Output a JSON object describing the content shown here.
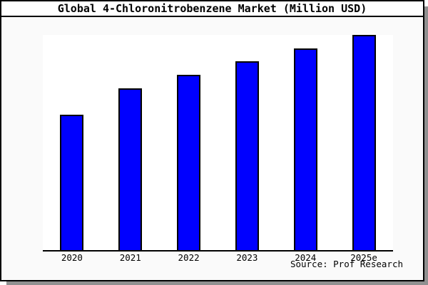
{
  "title": "Global 4-Chloronitrobenzene Market (Million USD)",
  "source_credit": "Source: Prof Research",
  "colors": {
    "bar_fill": "#0000ff",
    "bar_outline": "#000000",
    "canvas_background": "#fafafa",
    "title_background": "#ffffff",
    "plot_background": "#ffffff",
    "frame_border": "#000000",
    "shadow": "#909090",
    "text": "#000000"
  },
  "chart_data": {
    "type": "bar",
    "title": "Global 4-Chloronitrobenzene Market (Million USD)",
    "categories": [
      "2020",
      "2021",
      "2022",
      "2023",
      "2024",
      "2025e"
    ],
    "values": [
      62.8,
      75.1,
      81.4,
      87.7,
      93.7,
      100
    ],
    "value_note": "no y-axis or data labels shown; values estimated from bar heights relative to 2025e = 100",
    "xlabel": "",
    "ylabel": "",
    "ylim": [
      0,
      100
    ],
    "grid": false,
    "legend": null,
    "y_axis_visible": false,
    "source": "Source: Prof Research"
  }
}
